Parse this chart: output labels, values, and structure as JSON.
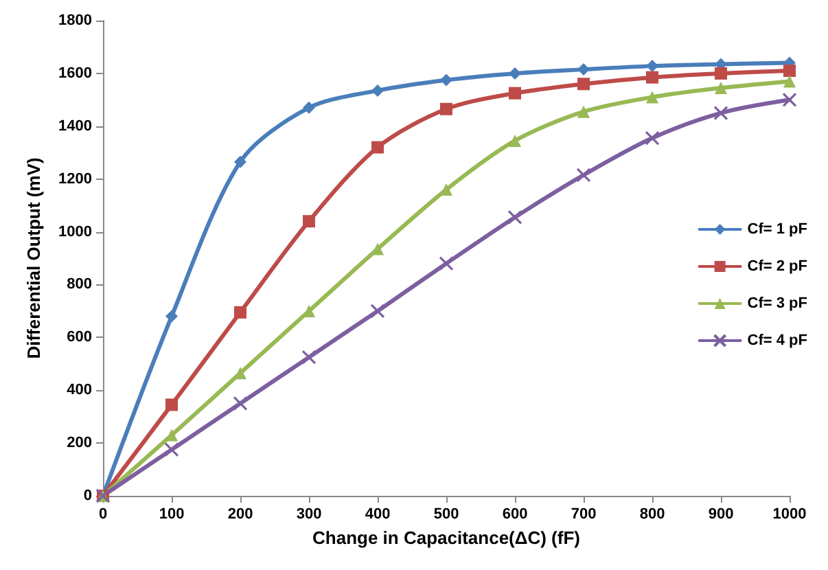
{
  "chart_data": {
    "type": "line",
    "xlabel": "Change in Capacitance(ΔC) (fF)",
    "ylabel": "Differential Output (mV)",
    "x": [
      0,
      100,
      200,
      300,
      400,
      500,
      600,
      700,
      800,
      900,
      1000
    ],
    "series": [
      {
        "name": "Cf= 1 pF",
        "color": "#4a7ebb",
        "marker": "diamond",
        "values": [
          0,
          680,
          1265,
          1470,
          1535,
          1575,
          1600,
          1615,
          1628,
          1635,
          1640
        ]
      },
      {
        "name": "Cf= 2 pF",
        "color": "#be4b48",
        "marker": "square",
        "values": [
          0,
          345,
          695,
          1040,
          1320,
          1465,
          1525,
          1560,
          1585,
          1600,
          1610
        ]
      },
      {
        "name": "Cf= 3 pF",
        "color": "#98b954",
        "marker": "triangle",
        "values": [
          0,
          230,
          465,
          700,
          935,
          1160,
          1345,
          1455,
          1510,
          1545,
          1570
        ]
      },
      {
        "name": "Cf= 4 pF",
        "color": "#7d5fa0",
        "marker": "cross",
        "values": [
          0,
          175,
          350,
          525,
          700,
          880,
          1055,
          1215,
          1355,
          1450,
          1500
        ]
      }
    ],
    "xlim": [
      0,
      1000
    ],
    "xticks": [
      0,
      100,
      200,
      300,
      400,
      500,
      600,
      700,
      800,
      900,
      1000
    ],
    "ylim": [
      0,
      1800
    ],
    "yticks": [
      0,
      200,
      400,
      600,
      800,
      1000,
      1200,
      1400,
      1600,
      1800
    ],
    "grid": false,
    "legend": "right",
    "line_style": "solid"
  }
}
